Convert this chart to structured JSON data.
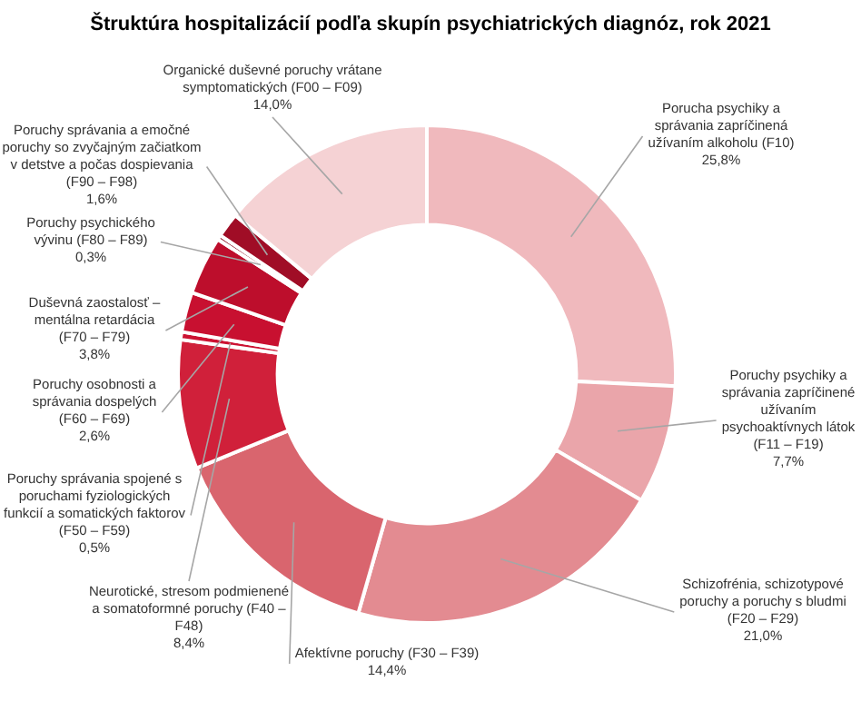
{
  "chart_data": {
    "type": "donut",
    "title": "Štruktúra hospitalizácií podľa skupín psychiatrických diagnóz, rok 2021",
    "categories": [
      "Porucha psychiky a správania zapríčinená užívaním alkoholu (F10)",
      "Poruchy psychiky a správania zapríčinené užívaním psychoaktívnych látok (F11 – F19)",
      "Schizofrénia, schizotypové poruchy a poruchy s bludmi (F20 – F29)",
      "Afektívne poruchy (F30 – F39)",
      "Neurotické, stresom podmienené a somatoformné poruchy (F40 – F48)",
      "Poruchy správania spojené s poruchami fyziologických funkcií a somatických faktorov (F50 – F59)",
      "Poruchy osobnosti a správania dospelých (F60 – F69)",
      "Duševná zaostalosť – mentálna retardácia (F70 – F79)",
      "Poruchy psychického vývinu (F80 – F89)",
      "Poruchy správania a emočné poruchy so zvyčajným začiatkom v detstve a počas dospievania (F90 – F98)",
      "Organické duševné poruchy vrátane symptomatických (F00 – F09)"
    ],
    "values": [
      25.8,
      7.7,
      21.0,
      14.4,
      8.4,
      0.5,
      2.6,
      3.8,
      0.3,
      1.6,
      14.0
    ],
    "value_labels": [
      "25,8%",
      "7,7%",
      "21,0%",
      "14,4%",
      "8,4%",
      "0,5%",
      "2,6%",
      "3,8%",
      "0,3%",
      "1,6%",
      "14,0%"
    ],
    "colors": [
      "#f0b9bd",
      "#eaa5aa",
      "#e38b91",
      "#d9656e",
      "#d0203a",
      "#cc1232",
      "#c81030",
      "#bd0e2c",
      "#8a0a1e",
      "#a00d26",
      "#f5d2d4"
    ],
    "legend": false
  }
}
